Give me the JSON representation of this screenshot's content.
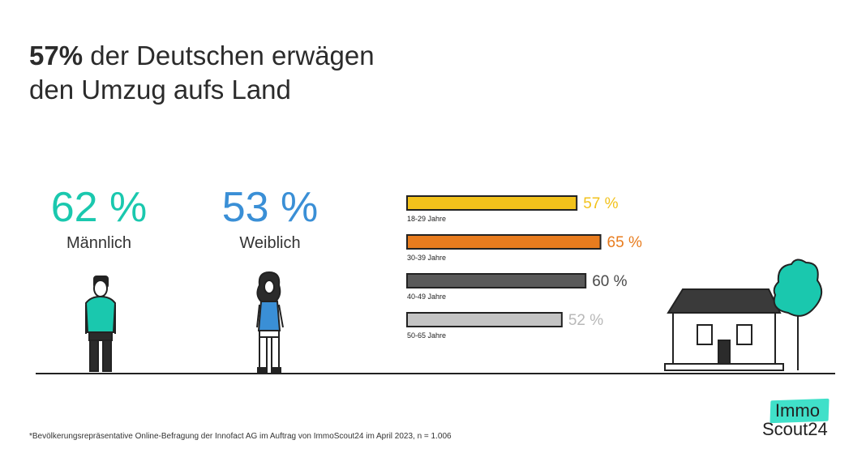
{
  "title": {
    "highlight": "57%",
    "rest_line1": "der Deutschen erwägen",
    "line2": "den Umzug aufs Land"
  },
  "gender_stats": [
    {
      "value": "62 %",
      "label": "Männlich",
      "color": "#1ac8ae"
    },
    {
      "value": "53 %",
      "label": "Weiblich",
      "color": "#3a8fd6"
    }
  ],
  "chart_data": {
    "type": "bar",
    "orientation": "horizontal",
    "categories": [
      "18-29 Jahre",
      "30-39 Jahre",
      "40-49 Jahre",
      "50-65 Jahre"
    ],
    "values": [
      57,
      65,
      60,
      52
    ],
    "value_labels": [
      "57 %",
      "65 %",
      "60 %",
      "52 %"
    ],
    "colors": [
      "#f2c21b",
      "#e87c1e",
      "#5a5a5a",
      "#c4c4c4"
    ],
    "label_colors": [
      "#f2c21b",
      "#e87c1e",
      "#4a4a4a",
      "#b8b8b8"
    ]
  },
  "footnote": "*Bevölkerungsrepräsentative Online-Befragung der Innofact AG im Auftrag von ImmoScout24 im April 2023, n = 1.006",
  "logo": {
    "top": "Immo",
    "bottom": "Scout24"
  }
}
